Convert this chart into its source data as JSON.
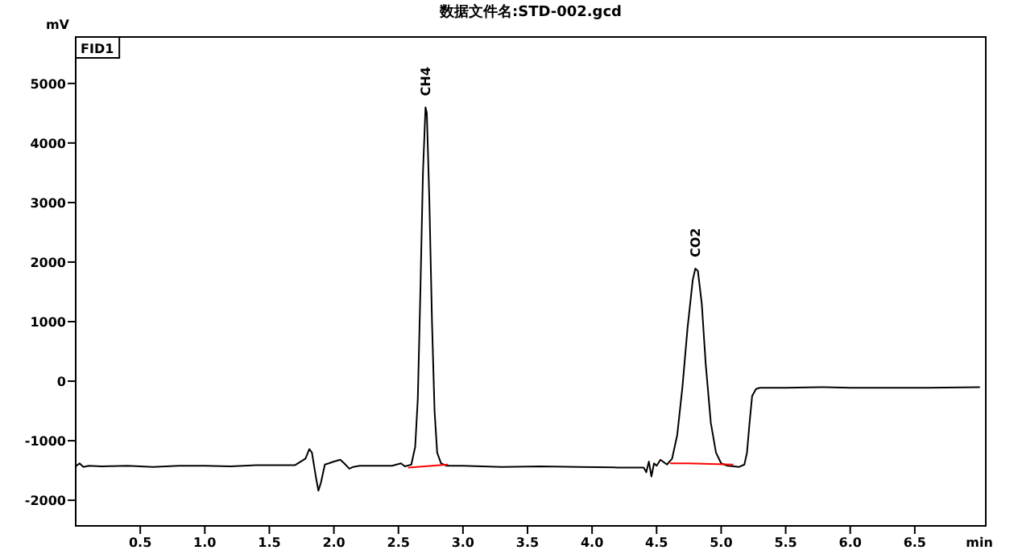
{
  "chart_data": {
    "type": "line",
    "title": "数据文件名:STD-002.gcd",
    "xlabel": "min",
    "ylabel": "mV",
    "annotations": [
      "FID1",
      {
        "text": "CH4",
        "x": 2.71,
        "y": 4600
      },
      {
        "text": "CO2",
        "x": 4.8,
        "y": 1890
      }
    ],
    "xlim": [
      0,
      7.05
    ],
    "ylim": [
      -2430,
      5780
    ],
    "xticks": [
      0.5,
      {
        "value": 1,
        "label": "1.0"
      },
      1.5,
      {
        "value": 2,
        "label": "2.0"
      },
      2.5,
      {
        "value": 3,
        "label": "3.0"
      },
      3.5,
      {
        "value": 4,
        "label": "4.0"
      },
      4.5,
      {
        "value": 5,
        "label": "5.0"
      },
      5.5,
      {
        "value": 6,
        "label": "6.0"
      },
      6.5
    ],
    "yticks": [
      -2000,
      -1000,
      0,
      1000,
      2000,
      3000,
      4000,
      5000
    ],
    "grid": false,
    "series": [
      {
        "color": "#000000",
        "x": [
          0,
          0.03,
          0.06,
          0.1,
          0.2,
          0.4,
          0.6,
          0.8,
          1.0,
          1.2,
          1.4,
          1.6,
          1.7,
          1.78,
          1.81,
          1.83,
          1.86,
          1.88,
          1.9,
          1.93,
          1.96,
          2.0,
          2.05,
          2.08,
          2.12,
          2.15,
          2.2,
          2.3,
          2.45,
          2.52,
          2.55,
          2.6,
          2.63,
          2.65,
          2.67,
          2.69,
          2.71,
          2.72,
          2.74,
          2.76,
          2.78,
          2.8,
          2.83,
          2.87,
          3.0,
          3.3,
          3.6,
          3.9,
          4.2,
          4.4,
          4.42,
          4.44,
          4.46,
          4.48,
          4.5,
          4.53,
          4.58,
          4.62,
          4.66,
          4.7,
          4.74,
          4.78,
          4.8,
          4.82,
          4.85,
          4.88,
          4.92,
          4.96,
          5.0,
          5.05,
          5.1,
          5.14,
          5.18,
          5.2,
          5.22,
          5.24,
          5.27,
          5.3,
          5.5,
          5.8,
          6.0,
          6.3,
          6.6,
          7.0
        ],
        "values": [
          -1430,
          -1380,
          -1440,
          -1420,
          -1430,
          -1420,
          -1440,
          -1420,
          -1420,
          -1430,
          -1410,
          -1410,
          -1410,
          -1300,
          -1140,
          -1200,
          -1600,
          -1840,
          -1700,
          -1400,
          -1380,
          -1350,
          -1320,
          -1380,
          -1470,
          -1440,
          -1420,
          -1420,
          -1420,
          -1380,
          -1430,
          -1400,
          -1100,
          -300,
          1500,
          3500,
          4600,
          4500,
          3000,
          1000,
          -500,
          -1200,
          -1380,
          -1420,
          -1420,
          -1440,
          -1430,
          -1440,
          -1450,
          -1450,
          -1530,
          -1350,
          -1600,
          -1380,
          -1420,
          -1320,
          -1400,
          -1300,
          -900,
          -100,
          900,
          1700,
          1890,
          1850,
          1300,
          300,
          -700,
          -1200,
          -1380,
          -1420,
          -1430,
          -1440,
          -1400,
          -1200,
          -700,
          -250,
          -130,
          -110,
          -110,
          -100,
          -110,
          -110,
          -110,
          -100
        ]
      },
      {
        "color": "#ff0000",
        "x": [
          2.58,
          2.88
        ],
        "values": [
          -1450,
          -1400
        ]
      },
      {
        "color": "#ff0000",
        "x": [
          4.61,
          4.75,
          5.09
        ],
        "values": [
          -1380,
          -1380,
          -1400
        ]
      }
    ]
  }
}
